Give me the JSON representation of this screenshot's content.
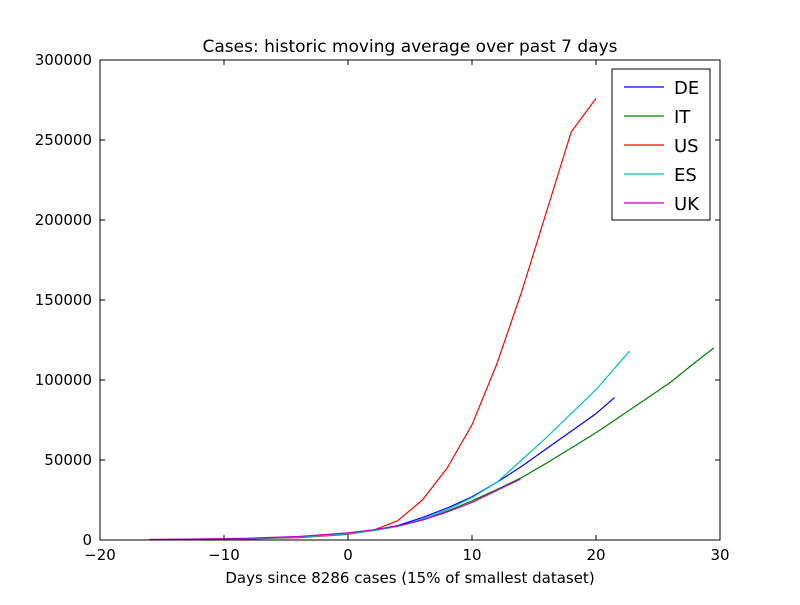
{
  "chart_data": {
    "type": "line",
    "title": "Cases: historic moving average over past 7 days",
    "xlabel": "Days since 8286 cases (15% of smallest dataset)",
    "ylabel": "",
    "xlim": [
      -20,
      30
    ],
    "ylim": [
      0,
      300000
    ],
    "x_ticks": [
      -20,
      -10,
      0,
      10,
      20,
      30
    ],
    "x_tick_labels": [
      "−20",
      "−10",
      "0",
      "10",
      "20",
      "30"
    ],
    "y_ticks": [
      0,
      50000,
      100000,
      150000,
      200000,
      250000,
      300000
    ],
    "y_tick_labels": [
      "0",
      "50000",
      "100000",
      "150000",
      "200000",
      "250000",
      "300000"
    ],
    "grid": false,
    "legend_position": "top-right",
    "series": [
      {
        "name": "DE",
        "color": "#0000ff",
        "x": [
          -16,
          -12,
          -8,
          -4,
          0,
          2,
          4,
          6,
          8,
          10,
          12,
          14,
          16,
          18,
          20,
          21.5
        ],
        "y": [
          200,
          400,
          800,
          1800,
          4000,
          6000,
          9000,
          14000,
          20000,
          27000,
          36000,
          46000,
          57000,
          68000,
          79000,
          89000
        ]
      },
      {
        "name": "IT",
        "color": "#008000",
        "x": [
          -16,
          -12,
          -8,
          -4,
          0,
          2,
          4,
          6,
          8,
          10,
          12,
          14,
          16,
          18,
          20,
          22,
          24,
          26,
          28,
          29.5
        ],
        "y": [
          200,
          400,
          900,
          1900,
          4000,
          5800,
          8500,
          12500,
          18000,
          24500,
          31500,
          39000,
          48000,
          57500,
          67000,
          77500,
          88000,
          98500,
          111000,
          120000
        ]
      },
      {
        "name": "US",
        "color": "#ff0000",
        "x": [
          -16,
          -12,
          -8,
          -4,
          0,
          2,
          4,
          6,
          8,
          10,
          12,
          14,
          16,
          18,
          20
        ],
        "y": [
          100,
          300,
          700,
          1500,
          3500,
          6000,
          12000,
          25000,
          45000,
          72000,
          110000,
          155000,
          205000,
          255000,
          276000
        ]
      },
      {
        "name": "ES",
        "color": "#00bfbf",
        "x": [
          -16,
          -12,
          -8,
          -4,
          0,
          2,
          4,
          6,
          8,
          10,
          12,
          14,
          16,
          18,
          20,
          22.7
        ],
        "y": [
          200,
          400,
          800,
          1700,
          3800,
          5800,
          8500,
          13000,
          19000,
          26500,
          36000,
          50000,
          64000,
          79000,
          94000,
          118000
        ]
      },
      {
        "name": "UK",
        "color": "#bf00bf",
        "x": [
          -16,
          -12,
          -8,
          -4,
          0,
          2,
          4,
          6,
          8,
          10,
          12,
          13.9
        ],
        "y": [
          300,
          600,
          1100,
          2200,
          4500,
          6300,
          8800,
          12500,
          17500,
          23500,
          31000,
          38000
        ]
      }
    ]
  }
}
